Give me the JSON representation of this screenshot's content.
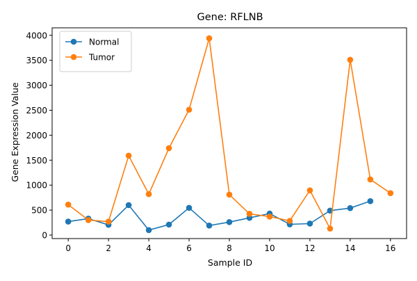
{
  "chart_data": {
    "type": "line",
    "title": "Gene: RFLNB",
    "xlabel": "Sample ID",
    "ylabel": "Gene Expression Value",
    "xlim": [
      -0.8,
      16.8
    ],
    "ylim": [
      -70,
      4150
    ],
    "xticks": [
      0,
      2,
      4,
      6,
      8,
      10,
      12,
      14,
      16
    ],
    "yticks": [
      0,
      500,
      1000,
      1500,
      2000,
      2500,
      3000,
      3500,
      4000
    ],
    "x": [
      0,
      1,
      2,
      3,
      4,
      5,
      6,
      7,
      8,
      9,
      10,
      11,
      12,
      13,
      14,
      15,
      16
    ],
    "series": [
      {
        "name": "Normal",
        "color": "#1f77b4",
        "x": [
          0,
          1,
          2,
          3,
          4,
          5,
          6,
          7,
          8,
          9,
          10,
          11,
          12,
          13,
          14,
          15
        ],
        "values": [
          270,
          330,
          205,
          600,
          100,
          210,
          545,
          190,
          260,
          345,
          430,
          215,
          230,
          490,
          540,
          680
        ]
      },
      {
        "name": "Tumor",
        "color": "#ff7f0e",
        "x": [
          0,
          1,
          2,
          3,
          4,
          5,
          6,
          7,
          8,
          9,
          10,
          11,
          12,
          13,
          14,
          15,
          16
        ],
        "values": [
          610,
          300,
          270,
          1590,
          820,
          1740,
          2510,
          3940,
          810,
          425,
          370,
          285,
          895,
          130,
          3510,
          1115,
          840
        ]
      }
    ],
    "legend_position": "top-left",
    "grid": false
  }
}
